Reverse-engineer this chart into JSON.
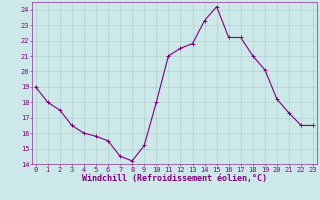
{
  "x": [
    0,
    1,
    2,
    3,
    4,
    5,
    6,
    7,
    8,
    9,
    10,
    11,
    12,
    13,
    14,
    15,
    16,
    17,
    18,
    19,
    20,
    21,
    22,
    23
  ],
  "y": [
    19,
    18,
    17.5,
    16.5,
    16,
    15.8,
    15.5,
    14.5,
    14.2,
    15.2,
    18.0,
    21.0,
    21.5,
    21.8,
    23.3,
    24.2,
    22.2,
    22.2,
    21.0,
    20.1,
    18.2,
    17.3,
    16.5,
    16.5
  ],
  "line_color": "#800080",
  "marker_color": "#800080",
  "bg_color": "#cce8e8",
  "grid_color": "#aacccc",
  "xlabel": "Windchill (Refroidissement éolien,°C)",
  "xlabel_color": "#800080",
  "ylim": [
    14,
    24.5
  ],
  "yticks": [
    14,
    15,
    16,
    17,
    18,
    19,
    20,
    21,
    22,
    23,
    24
  ],
  "xticks": [
    0,
    1,
    2,
    3,
    4,
    5,
    6,
    7,
    8,
    9,
    10,
    11,
    12,
    13,
    14,
    15,
    16,
    17,
    18,
    19,
    20,
    21,
    22,
    23
  ],
  "tick_color": "#800080",
  "tick_fontsize": 5.0,
  "xlabel_fontsize": 6.0,
  "linewidth": 0.8,
  "markersize": 2.0
}
